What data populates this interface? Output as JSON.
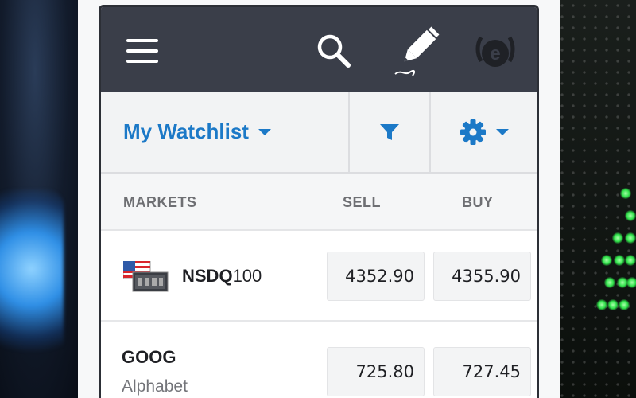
{
  "toolbar": {
    "watchlist_label": "My Watchlist"
  },
  "columns": {
    "markets": "MARKETS",
    "sell": "SELL",
    "buy": "BUY"
  },
  "rows": [
    {
      "symbol_bold": "NSDQ",
      "symbol_rest": "100",
      "sell": "4352.90",
      "buy": "4355.90"
    },
    {
      "symbol_bold": "GOOG",
      "symbol_rest": "",
      "name": "Alphabet",
      "sell": "725.80",
      "buy": "727.45"
    }
  ],
  "icons": {
    "menu": "hamburger-menu-icon",
    "search": "search-icon",
    "edit": "pencil-icon",
    "brand": "brand-logo-icon",
    "filter": "filter-icon",
    "settings": "gear-icon",
    "flag": "us-flag-icon"
  },
  "colors": {
    "topbar": "#3a3e49",
    "accent": "#1c79c7",
    "toolbar_bg": "#f2f3f4",
    "price_box": "#f3f4f5"
  }
}
